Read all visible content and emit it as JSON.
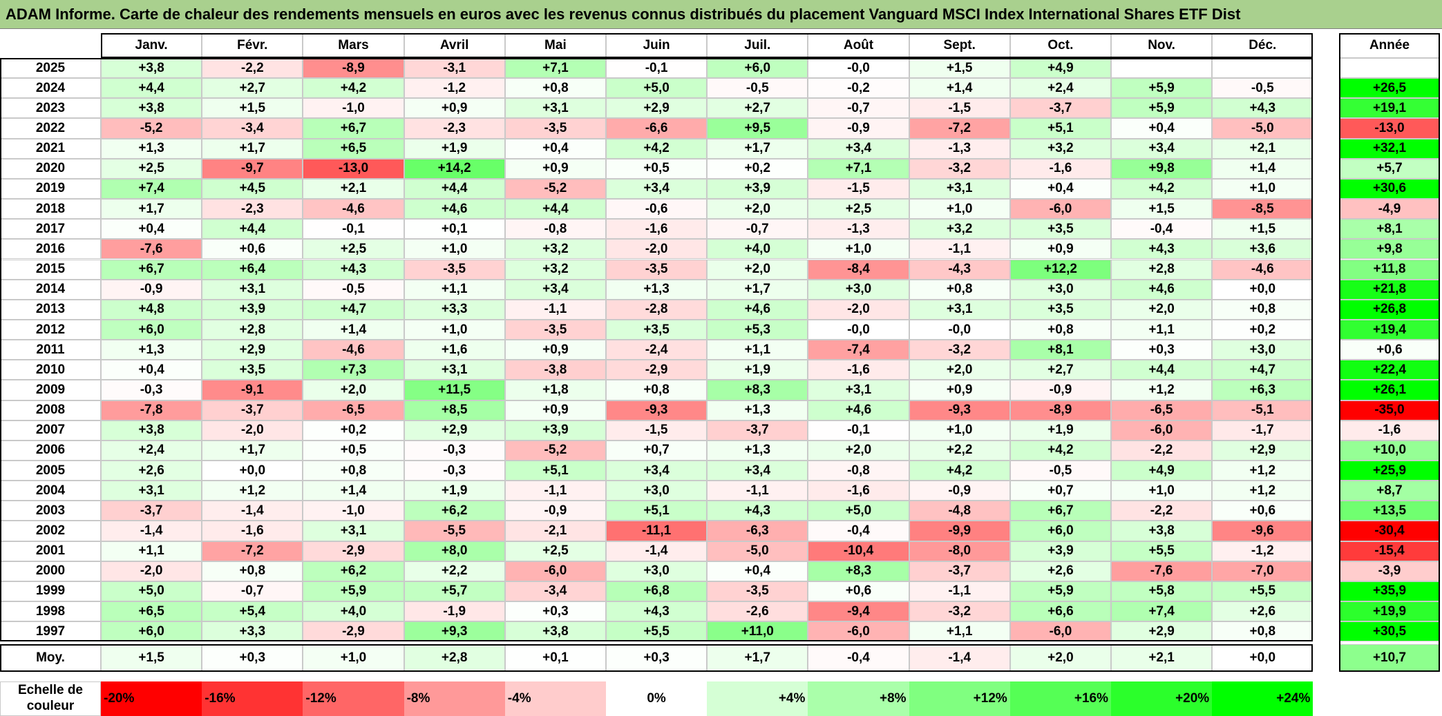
{
  "chart_data": {
    "type": "heatmap",
    "title": "ADAM Informe. Carte de chaleur des rendements mensuels en euros avec les revenus connus distribués du placement Vanguard MSCI Index International Shares ETF Dist",
    "columns": [
      "Janv.",
      "Févr.",
      "Mars",
      "Avril",
      "Mai",
      "Juin",
      "Juil.",
      "Août",
      "Sept.",
      "Oct.",
      "Nov.",
      "Déc."
    ],
    "total_column": "Année",
    "rows": [
      2025,
      2024,
      2023,
      2022,
      2021,
      2020,
      2019,
      2018,
      2017,
      2016,
      2015,
      2014,
      2013,
      2012,
      2011,
      2010,
      2009,
      2008,
      2007,
      2006,
      2005,
      2004,
      2003,
      2002,
      2001,
      2000,
      1999,
      1998,
      1997
    ],
    "values": [
      [
        3.8,
        -2.2,
        -8.9,
        -3.1,
        7.1,
        -0.1,
        6.0,
        0,
        1.5,
        4.9,
        null,
        null
      ],
      [
        4.4,
        2.7,
        4.2,
        -1.2,
        0.8,
        5.0,
        -0.5,
        -0.2,
        1.4,
        2.4,
        5.9,
        -0.5
      ],
      [
        3.8,
        1.5,
        -1.0,
        0.9,
        3.1,
        2.9,
        2.7,
        -0.7,
        -1.5,
        -3.7,
        5.9,
        4.3
      ],
      [
        -5.2,
        -3.4,
        6.7,
        -2.3,
        -3.5,
        -6.6,
        9.5,
        -0.9,
        -7.2,
        5.1,
        0.4,
        -5.0
      ],
      [
        1.3,
        1.7,
        6.5,
        1.9,
        0.4,
        4.2,
        1.7,
        3.4,
        -1.3,
        3.2,
        3.4,
        2.1
      ],
      [
        2.5,
        -9.7,
        -13.0,
        14.2,
        0.9,
        0.5,
        0.2,
        7.1,
        -3.2,
        -1.6,
        9.8,
        1.4
      ],
      [
        7.4,
        4.5,
        2.1,
        4.4,
        -5.2,
        3.4,
        3.9,
        -1.5,
        3.1,
        0.4,
        4.2,
        1.0
      ],
      [
        1.7,
        -2.3,
        -4.6,
        4.6,
        4.4,
        -0.6,
        2.0,
        2.5,
        1.0,
        -6.0,
        1.5,
        -8.5
      ],
      [
        0.4,
        4.4,
        -0.1,
        0.1,
        -0.8,
        -1.6,
        -0.7,
        -1.3,
        3.2,
        3.5,
        -0.4,
        1.5
      ],
      [
        -7.6,
        0.6,
        2.5,
        1.0,
        3.2,
        -2.0,
        4.0,
        1.0,
        -1.1,
        0.9,
        4.3,
        3.6
      ],
      [
        6.7,
        6.4,
        4.3,
        -3.5,
        3.2,
        -3.5,
        2.0,
        -8.4,
        -4.3,
        12.2,
        2.8,
        -4.6
      ],
      [
        -0.9,
        3.1,
        -0.5,
        1.1,
        3.4,
        1.3,
        1.7,
        3.0,
        0.8,
        3.0,
        4.6,
        0.0
      ],
      [
        4.8,
        3.9,
        4.7,
        3.3,
        -1.1,
        -2.8,
        4.6,
        -2.0,
        3.1,
        3.5,
        2.0,
        0.8
      ],
      [
        6.0,
        2.8,
        1.4,
        1.0,
        -3.5,
        3.5,
        5.3,
        0,
        0,
        0.8,
        1.1,
        0.2
      ],
      [
        1.3,
        2.9,
        -4.6,
        1.6,
        0.9,
        -2.4,
        1.1,
        -7.4,
        -3.2,
        8.1,
        0.3,
        3.0
      ],
      [
        0.4,
        3.5,
        7.3,
        3.1,
        -3.8,
        -2.9,
        1.9,
        -1.6,
        2.0,
        2.7,
        4.4,
        4.7
      ],
      [
        -0.3,
        -9.1,
        2.0,
        11.5,
        1.8,
        0.8,
        8.3,
        3.1,
        0.9,
        -0.9,
        1.2,
        6.3
      ],
      [
        -7.8,
        -3.7,
        -6.5,
        8.5,
        0.9,
        -9.3,
        1.3,
        4.6,
        -9.3,
        -8.9,
        -6.5,
        -5.1
      ],
      [
        3.8,
        -2.0,
        0.2,
        2.9,
        3.9,
        -1.5,
        -3.7,
        -0.1,
        1.0,
        1.9,
        -6.0,
        -1.7
      ],
      [
        2.4,
        1.7,
        0.5,
        -0.3,
        -5.2,
        0.7,
        1.3,
        2.0,
        2.2,
        4.2,
        -2.2,
        2.9
      ],
      [
        2.6,
        0.0,
        0.8,
        -0.3,
        5.1,
        3.4,
        3.4,
        -0.8,
        4.2,
        -0.5,
        4.9,
        1.2
      ],
      [
        3.1,
        1.2,
        1.4,
        1.9,
        -1.1,
        3.0,
        -1.1,
        -1.6,
        -0.9,
        0.7,
        1.0,
        1.2
      ],
      [
        -3.7,
        -1.4,
        -1.0,
        6.2,
        -0.9,
        5.1,
        4.3,
        5.0,
        -4.8,
        6.7,
        -2.2,
        0.6
      ],
      [
        -1.4,
        -1.6,
        3.1,
        -5.5,
        -2.1,
        -11.1,
        -6.3,
        -0.4,
        -9.9,
        6.0,
        3.8,
        -9.6
      ],
      [
        1.1,
        -7.2,
        -2.9,
        8.0,
        2.5,
        -1.4,
        -5.0,
        -10.4,
        -8.0,
        3.9,
        5.5,
        -1.2
      ],
      [
        -2.0,
        0.8,
        6.2,
        2.2,
        -6.0,
        3.0,
        0.4,
        8.3,
        -3.7,
        2.6,
        -7.6,
        -7.0
      ],
      [
        5.0,
        -0.7,
        5.9,
        5.7,
        -3.4,
        6.8,
        -3.5,
        0.6,
        -1.1,
        5.9,
        5.8,
        5.5
      ],
      [
        6.5,
        5.4,
        4.0,
        -1.9,
        0.3,
        4.3,
        -2.6,
        -9.4,
        -3.2,
        6.6,
        7.4,
        2.6
      ],
      [
        6.0,
        3.3,
        -2.9,
        9.3,
        3.8,
        5.5,
        11.0,
        -6.0,
        1.1,
        -6.0,
        2.9,
        0.8
      ]
    ],
    "value_labels": [
      [
        "+3,8",
        "-2,2",
        "-8,9",
        "-3,1",
        "+7,1",
        "-0,1",
        "+6,0",
        "-0,0",
        "+1,5",
        "+4,9",
        null,
        null
      ],
      [
        "+4,4",
        "+2,7",
        "+4,2",
        "-1,2",
        "+0,8",
        "+5,0",
        "-0,5",
        "-0,2",
        "+1,4",
        "+2,4",
        "+5,9",
        "-0,5"
      ],
      [
        "+3,8",
        "+1,5",
        "-1,0",
        "+0,9",
        "+3,1",
        "+2,9",
        "+2,7",
        "-0,7",
        "-1,5",
        "-3,7",
        "+5,9",
        "+4,3"
      ],
      [
        "-5,2",
        "-3,4",
        "+6,7",
        "-2,3",
        "-3,5",
        "-6,6",
        "+9,5",
        "-0,9",
        "-7,2",
        "+5,1",
        "+0,4",
        "-5,0"
      ],
      [
        "+1,3",
        "+1,7",
        "+6,5",
        "+1,9",
        "+0,4",
        "+4,2",
        "+1,7",
        "+3,4",
        "-1,3",
        "+3,2",
        "+3,4",
        "+2,1"
      ],
      [
        "+2,5",
        "-9,7",
        "-13,0",
        "+14,2",
        "+0,9",
        "+0,5",
        "+0,2",
        "+7,1",
        "-3,2",
        "-1,6",
        "+9,8",
        "+1,4"
      ],
      [
        "+7,4",
        "+4,5",
        "+2,1",
        "+4,4",
        "-5,2",
        "+3,4",
        "+3,9",
        "-1,5",
        "+3,1",
        "+0,4",
        "+4,2",
        "+1,0"
      ],
      [
        "+1,7",
        "-2,3",
        "-4,6",
        "+4,6",
        "+4,4",
        "-0,6",
        "+2,0",
        "+2,5",
        "+1,0",
        "-6,0",
        "+1,5",
        "-8,5"
      ],
      [
        "+0,4",
        "+4,4",
        "-0,1",
        "+0,1",
        "-0,8",
        "-1,6",
        "-0,7",
        "-1,3",
        "+3,2",
        "+3,5",
        "-0,4",
        "+1,5"
      ],
      [
        "-7,6",
        "+0,6",
        "+2,5",
        "+1,0",
        "+3,2",
        "-2,0",
        "+4,0",
        "+1,0",
        "-1,1",
        "+0,9",
        "+4,3",
        "+3,6"
      ],
      [
        "+6,7",
        "+6,4",
        "+4,3",
        "-3,5",
        "+3,2",
        "-3,5",
        "+2,0",
        "-8,4",
        "-4,3",
        "+12,2",
        "+2,8",
        "-4,6"
      ],
      [
        "-0,9",
        "+3,1",
        "-0,5",
        "+1,1",
        "+3,4",
        "+1,3",
        "+1,7",
        "+3,0",
        "+0,8",
        "+3,0",
        "+4,6",
        "+0,0"
      ],
      [
        "+4,8",
        "+3,9",
        "+4,7",
        "+3,3",
        "-1,1",
        "-2,8",
        "+4,6",
        "-2,0",
        "+3,1",
        "+3,5",
        "+2,0",
        "+0,8"
      ],
      [
        "+6,0",
        "+2,8",
        "+1,4",
        "+1,0",
        "-3,5",
        "+3,5",
        "+5,3",
        "-0,0",
        "-0,0",
        "+0,8",
        "+1,1",
        "+0,2"
      ],
      [
        "+1,3",
        "+2,9",
        "-4,6",
        "+1,6",
        "+0,9",
        "-2,4",
        "+1,1",
        "-7,4",
        "-3,2",
        "+8,1",
        "+0,3",
        "+3,0"
      ],
      [
        "+0,4",
        "+3,5",
        "+7,3",
        "+3,1",
        "-3,8",
        "-2,9",
        "+1,9",
        "-1,6",
        "+2,0",
        "+2,7",
        "+4,4",
        "+4,7"
      ],
      [
        "-0,3",
        "-9,1",
        "+2,0",
        "+11,5",
        "+1,8",
        "+0,8",
        "+8,3",
        "+3,1",
        "+0,9",
        "-0,9",
        "+1,2",
        "+6,3"
      ],
      [
        "-7,8",
        "-3,7",
        "-6,5",
        "+8,5",
        "+0,9",
        "-9,3",
        "+1,3",
        "+4,6",
        "-9,3",
        "-8,9",
        "-6,5",
        "-5,1"
      ],
      [
        "+3,8",
        "-2,0",
        "+0,2",
        "+2,9",
        "+3,9",
        "-1,5",
        "-3,7",
        "-0,1",
        "+1,0",
        "+1,9",
        "-6,0",
        "-1,7"
      ],
      [
        "+2,4",
        "+1,7",
        "+0,5",
        "-0,3",
        "-5,2",
        "+0,7",
        "+1,3",
        "+2,0",
        "+2,2",
        "+4,2",
        "-2,2",
        "+2,9"
      ],
      [
        "+2,6",
        "+0,0",
        "+0,8",
        "-0,3",
        "+5,1",
        "+3,4",
        "+3,4",
        "-0,8",
        "+4,2",
        "-0,5",
        "+4,9",
        "+1,2"
      ],
      [
        "+3,1",
        "+1,2",
        "+1,4",
        "+1,9",
        "-1,1",
        "+3,0",
        "-1,1",
        "-1,6",
        "-0,9",
        "+0,7",
        "+1,0",
        "+1,2"
      ],
      [
        "-3,7",
        "-1,4",
        "-1,0",
        "+6,2",
        "-0,9",
        "+5,1",
        "+4,3",
        "+5,0",
        "-4,8",
        "+6,7",
        "-2,2",
        "+0,6"
      ],
      [
        "-1,4",
        "-1,6",
        "+3,1",
        "-5,5",
        "-2,1",
        "-11,1",
        "-6,3",
        "-0,4",
        "-9,9",
        "+6,0",
        "+3,8",
        "-9,6"
      ],
      [
        "+1,1",
        "-7,2",
        "-2,9",
        "+8,0",
        "+2,5",
        "-1,4",
        "-5,0",
        "-10,4",
        "-8,0",
        "+3,9",
        "+5,5",
        "-1,2"
      ],
      [
        "-2,0",
        "+0,8",
        "+6,2",
        "+2,2",
        "-6,0",
        "+3,0",
        "+0,4",
        "+8,3",
        "-3,7",
        "+2,6",
        "-7,6",
        "-7,0"
      ],
      [
        "+5,0",
        "-0,7",
        "+5,9",
        "+5,7",
        "-3,4",
        "+6,8",
        "-3,5",
        "+0,6",
        "-1,1",
        "+5,9",
        "+5,8",
        "+5,5"
      ],
      [
        "+6,5",
        "+5,4",
        "+4,0",
        "-1,9",
        "+0,3",
        "+4,3",
        "-2,6",
        "-9,4",
        "-3,2",
        "+6,6",
        "+7,4",
        "+2,6"
      ],
      [
        "+6,0",
        "+3,3",
        "-2,9",
        "+9,3",
        "+3,8",
        "+5,5",
        "+11,0",
        "-6,0",
        "+1,1",
        "-6,0",
        "+2,9",
        "+0,8"
      ]
    ],
    "row_totals": [
      null,
      26.5,
      19.1,
      -13.0,
      32.1,
      5.7,
      30.6,
      -4.9,
      8.1,
      9.8,
      11.8,
      21.8,
      26.8,
      19.4,
      0.6,
      22.4,
      26.1,
      -35.0,
      -1.6,
      10.0,
      25.9,
      8.7,
      13.5,
      -30.4,
      -15.4,
      -3.9,
      35.9,
      19.9,
      30.5
    ],
    "row_total_labels": [
      null,
      "+26,5",
      "+19,1",
      "-13,0",
      "+32,1",
      "+5,7",
      "+30,6",
      "-4,9",
      "+8,1",
      "+9,8",
      "+11,8",
      "+21,8",
      "+26,8",
      "+19,4",
      "+0,6",
      "+22,4",
      "+26,1",
      "-35,0",
      "-1,6",
      "+10,0",
      "+25,9",
      "+8,7",
      "+13,5",
      "-30,4",
      "-15,4",
      "-3,9",
      "+35,9",
      "+19,9",
      "+30,5"
    ],
    "average_row": "Moy.",
    "averages": [
      1.5,
      0.3,
      1.0,
      2.8,
      0.1,
      0.3,
      1.7,
      -0.4,
      -1.4,
      2.0,
      2.1,
      0.0
    ],
    "average_labels": [
      "+1,5",
      "+0,3",
      "+1,0",
      "+2,8",
      "+0,1",
      "+0,3",
      "+1,7",
      "-0,4",
      "-1,4",
      "+2,0",
      "+2,1",
      "+0,0"
    ],
    "average_total": 10.7,
    "average_total_label": "+10,7",
    "scale_title": "Echelle de couleur",
    "scale_ticks": [
      {
        "value": -20,
        "label": "-20%"
      },
      {
        "value": -16,
        "label": "-16%"
      },
      {
        "value": -12,
        "label": "-12%"
      },
      {
        "value": -8,
        "label": "-8%"
      },
      {
        "value": -4,
        "label": "-4%"
      },
      {
        "value": 0,
        "label": "0%"
      },
      {
        "value": 4,
        "label": "+4%"
      },
      {
        "value": 8,
        "label": "+8%"
      },
      {
        "value": 12,
        "label": "+12%"
      },
      {
        "value": 16,
        "label": "+16%"
      },
      {
        "value": 20,
        "label": "+20%"
      },
      {
        "value": 24,
        "label": "+24%"
      }
    ],
    "colors": {
      "negative": "#ff0000",
      "zero": "#ffffff",
      "positive": "#00ff00"
    }
  }
}
